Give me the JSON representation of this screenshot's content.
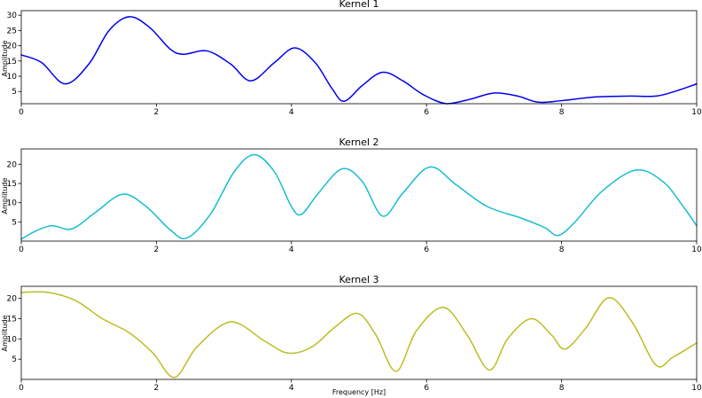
{
  "figure": {
    "xlabel": "Frequency [Hz]"
  },
  "chart_data": [
    {
      "type": "line",
      "title": "Kernel 1",
      "ylabel": "Amplitude",
      "xlabel": "",
      "xlim": [
        0,
        10
      ],
      "ylim": [
        1,
        31.5
      ],
      "xticks": [
        0,
        2,
        4,
        6,
        8,
        10
      ],
      "yticks": [
        5,
        10,
        15,
        20,
        25,
        30
      ],
      "color": "#0000ee",
      "series": [
        {
          "x": [
            0,
            0.3,
            0.65,
            1.0,
            1.3,
            1.6,
            1.9,
            2.2,
            2.4,
            2.75,
            3.1,
            3.4,
            3.75,
            4.05,
            4.35,
            4.6,
            4.78,
            5.05,
            5.35,
            5.65,
            5.95,
            6.3,
            6.65,
            7.0,
            7.35,
            7.65,
            8.0,
            8.5,
            9.0,
            9.4,
            9.7,
            10.0
          ],
          "y": [
            17,
            14.5,
            7.5,
            14,
            25,
            29.5,
            26,
            19,
            17.2,
            18.3,
            14,
            8.5,
            14.5,
            19.3,
            14.5,
            6,
            1.8,
            7,
            11.3,
            8.5,
            4,
            1,
            2.5,
            4.5,
            3.5,
            1.5,
            2,
            3.2,
            3.5,
            3.5,
            5.2,
            7.5
          ]
        }
      ]
    },
    {
      "type": "line",
      "title": "Kernel 2",
      "ylabel": "Amplitude",
      "xlabel": "",
      "xlim": [
        0,
        10
      ],
      "ylim": [
        0,
        24
      ],
      "xticks": [
        0,
        2,
        4,
        6,
        8,
        10
      ],
      "yticks": [
        5,
        10,
        15,
        20
      ],
      "color": "#17becf",
      "series": [
        {
          "x": [
            0,
            0.2,
            0.45,
            0.75,
            1.1,
            1.5,
            1.85,
            2.2,
            2.45,
            2.8,
            3.15,
            3.45,
            3.75,
            4.0,
            4.15,
            4.4,
            4.75,
            5.05,
            5.35,
            5.65,
            6.05,
            6.45,
            6.9,
            7.4,
            7.75,
            7.95,
            8.2,
            8.6,
            9.1,
            9.5,
            9.8,
            10.0
          ],
          "y": [
            0.5,
            2.5,
            4,
            3.2,
            7.5,
            12.2,
            9,
            3,
            0.8,
            7,
            18,
            22.5,
            18,
            9,
            7,
            12.5,
            18.8,
            15.5,
            6.5,
            12.5,
            19.3,
            14.5,
            9,
            6,
            3.5,
            1.5,
            5,
            13,
            18.5,
            15.5,
            9,
            4
          ]
        }
      ]
    },
    {
      "type": "line",
      "title": "Kernel 3",
      "ylabel": "Amplitude",
      "xlabel": "Frequency [Hz]",
      "xlim": [
        0,
        10
      ],
      "ylim": [
        0,
        23
      ],
      "xticks": [
        0,
        2,
        4,
        6,
        8,
        10
      ],
      "yticks": [
        5,
        10,
        15,
        20
      ],
      "color": "#bcbd22",
      "series": [
        {
          "x": [
            0,
            0.4,
            0.8,
            1.2,
            1.6,
            1.95,
            2.27,
            2.6,
            3.1,
            3.6,
            3.95,
            4.3,
            4.65,
            4.98,
            5.25,
            5.55,
            5.85,
            6.25,
            6.6,
            6.93,
            7.2,
            7.55,
            7.85,
            8.05,
            8.35,
            8.7,
            9.05,
            9.4,
            9.65,
            10.0
          ],
          "y": [
            21.5,
            21.5,
            19.5,
            15,
            11.5,
            6.5,
            0.5,
            8,
            14.2,
            9.5,
            6.5,
            8,
            13,
            16.3,
            11,
            2,
            12,
            17.8,
            11,
            2.3,
            10,
            15,
            11,
            7.5,
            12.5,
            20.2,
            14,
            3.5,
            5.5,
            9
          ]
        }
      ]
    }
  ]
}
